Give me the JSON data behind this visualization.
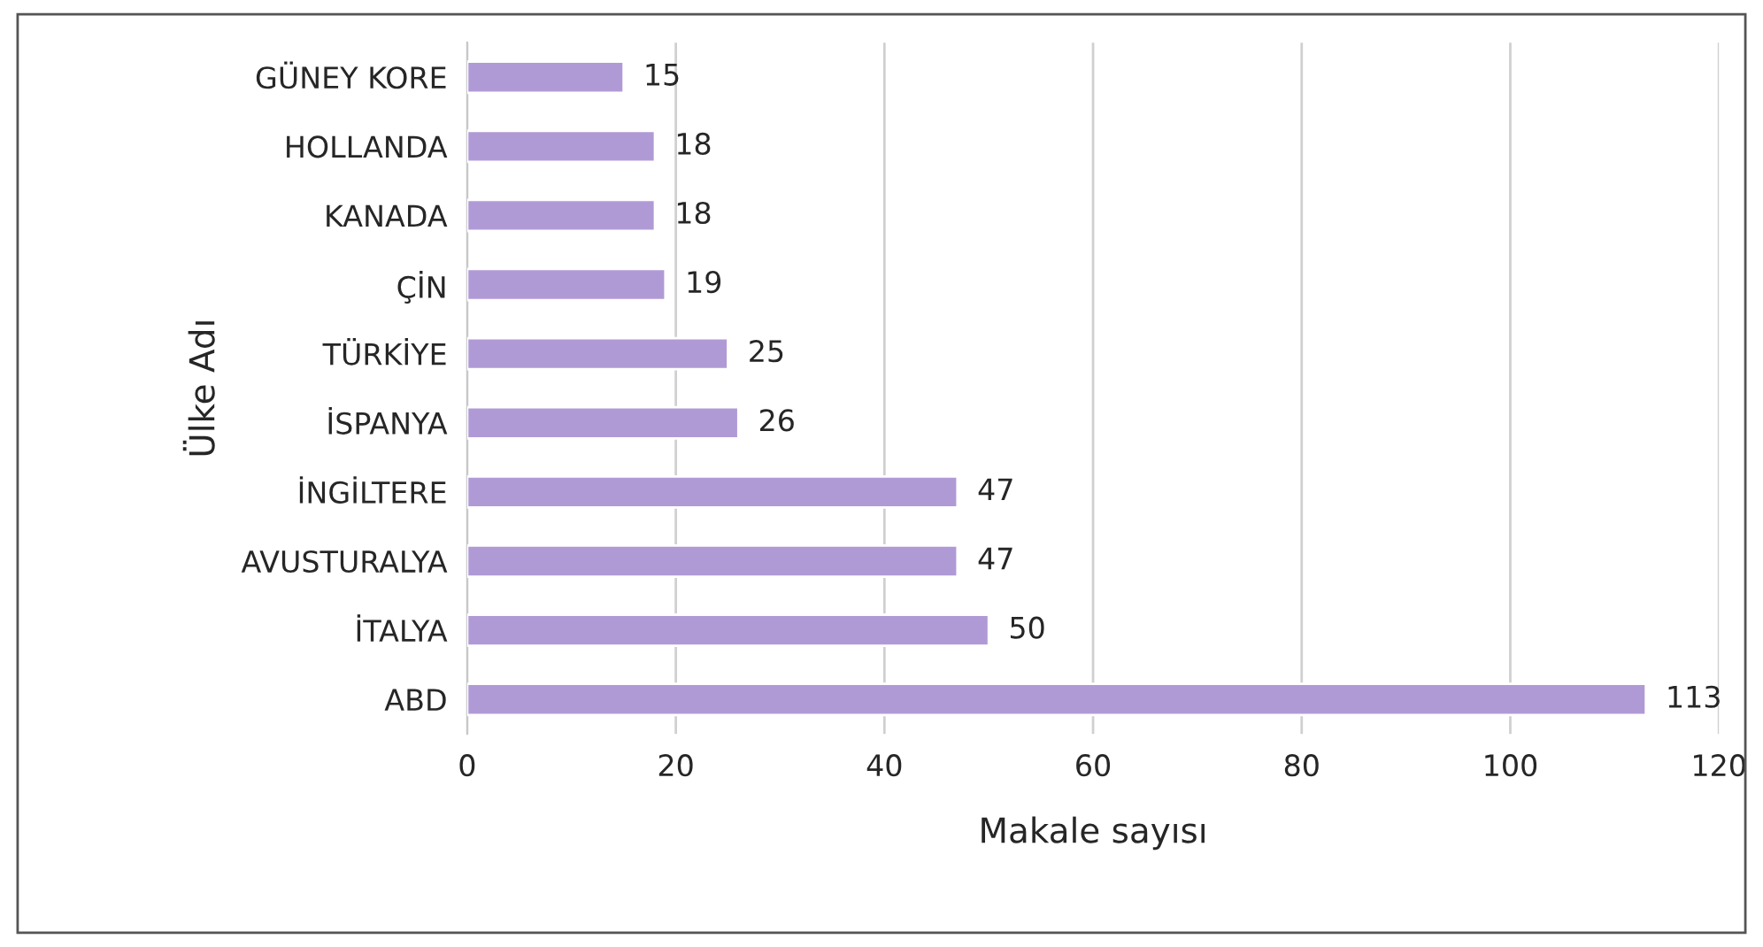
{
  "chart_data": {
    "type": "bar",
    "orientation": "horizontal",
    "xlabel": "Makale sayısı",
    "ylabel": "Ülke Adı",
    "categories": [
      "GÜNEY KORE",
      "HOLLANDA",
      "KANADA",
      "ÇİN",
      "TÜRKİYE",
      "İSPANYA",
      "İNGİLTERE",
      "AVUSTURALYA",
      "İTALYA",
      "ABD"
    ],
    "values": [
      15,
      18,
      18,
      19,
      25,
      26,
      47,
      47,
      50,
      113
    ],
    "color": "#b09ad6",
    "xlim": [
      0,
      120
    ],
    "xticks": [
      0,
      20,
      40,
      60,
      80,
      100,
      120
    ],
    "grid": "x",
    "data_labels": true
  }
}
